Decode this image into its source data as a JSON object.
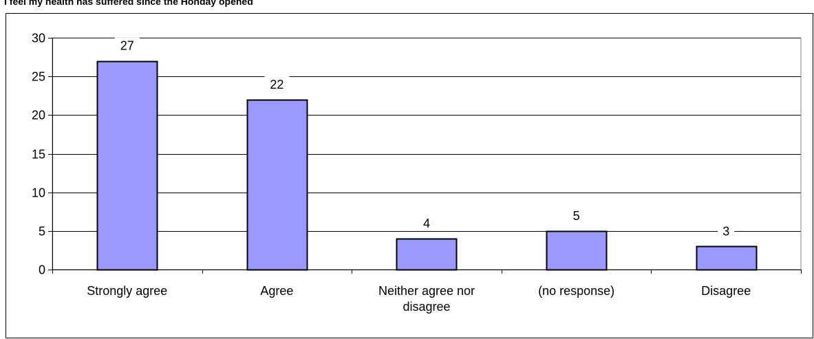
{
  "chart_data": {
    "type": "bar",
    "title": "I feel my health has suffered since the Honday opened",
    "xlabel": "",
    "ylabel": "",
    "categories": [
      [
        "Strongly agree"
      ],
      [
        "Agree"
      ],
      [
        "Neither agree nor",
        "disagree"
      ],
      [
        "(no response)"
      ],
      [
        "Disagree"
      ]
    ],
    "values": [
      27,
      22,
      4,
      5,
      3
    ],
    "ylim": [
      0,
      30
    ],
    "yticks": [
      "0",
      "5",
      "10",
      "15",
      "20",
      "25",
      "30"
    ],
    "data_labels": [
      "27",
      "22",
      "4",
      "5",
      "3"
    ],
    "grid": true,
    "legend": "none",
    "colors": {
      "bar_fill": "#9999ff",
      "bar_stroke": "#000000",
      "grid": "#000000",
      "plot_border": "#808080",
      "frame": "#000000"
    }
  }
}
